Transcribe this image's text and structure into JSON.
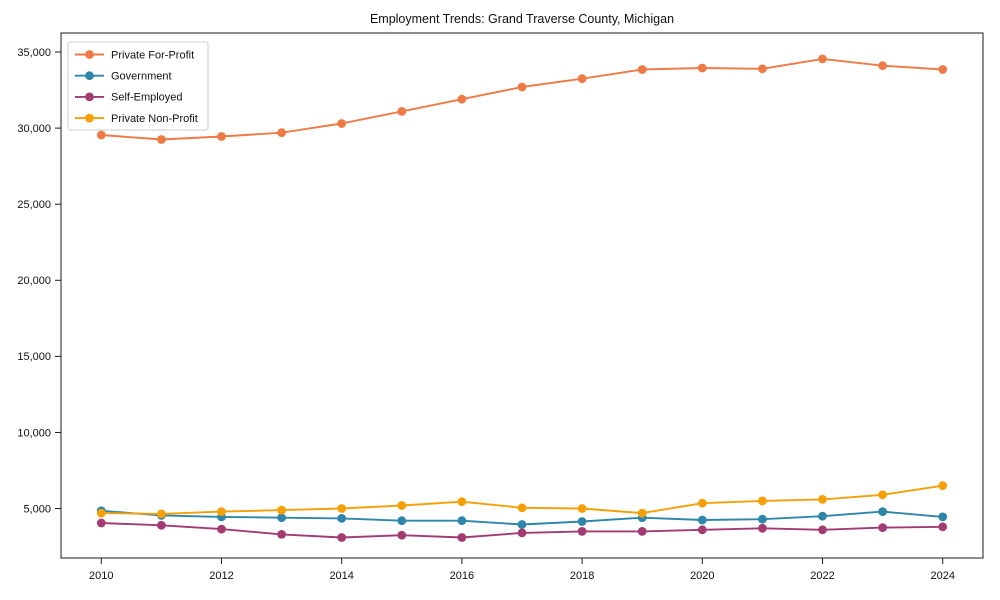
{
  "chart_data": {
    "type": "line",
    "title": "Employment Trends: Grand Traverse County, Michigan",
    "x": [
      2010,
      2011,
      2012,
      2013,
      2014,
      2015,
      2016,
      2017,
      2018,
      2019,
      2020,
      2021,
      2022,
      2023,
      2024
    ],
    "series": [
      {
        "name": "Private For-Profit",
        "color": "#EE7A45",
        "values": [
          29550,
          29250,
          29450,
          29700,
          30300,
          31100,
          31900,
          32700,
          33250,
          33850,
          33950,
          33900,
          34550,
          34100,
          33850
        ]
      },
      {
        "name": "Government",
        "color": "#2E86AB",
        "values": [
          4850,
          4550,
          4450,
          4400,
          4350,
          4200,
          4200,
          3950,
          4150,
          4400,
          4250,
          4300,
          4500,
          4800,
          4450
        ]
      },
      {
        "name": "Self-Employed",
        "color": "#A23B72",
        "values": [
          4050,
          3900,
          3650,
          3300,
          3100,
          3250,
          3100,
          3400,
          3500,
          3500,
          3600,
          3700,
          3600,
          3750,
          3800
        ]
      },
      {
        "name": "Private Non-Profit",
        "color": "#F5A009",
        "values": [
          4700,
          4650,
          4800,
          4900,
          5000,
          5200,
          5450,
          5050,
          5000,
          4700,
          5350,
          5500,
          5600,
          5900,
          6500
        ]
      }
    ],
    "xlabel": "",
    "ylabel": "",
    "xlim": [
      2009.33,
      2024.67
    ],
    "ylim": [
      1750,
      36250
    ],
    "xticks": {
      "values": [
        2010,
        2012,
        2014,
        2016,
        2018,
        2020,
        2022,
        2024
      ],
      "labels": [
        "2010",
        "2012",
        "2014",
        "2016",
        "2018",
        "2020",
        "2022",
        "2024"
      ]
    },
    "yticks": {
      "values": [
        5000,
        10000,
        15000,
        20000,
        25000,
        30000,
        35000
      ],
      "labels": [
        "5,000",
        "10,000",
        "15,000",
        "20,000",
        "25,000",
        "30,000",
        "35,000"
      ]
    },
    "legend": {
      "position": "upper-left"
    },
    "grid": false
  }
}
